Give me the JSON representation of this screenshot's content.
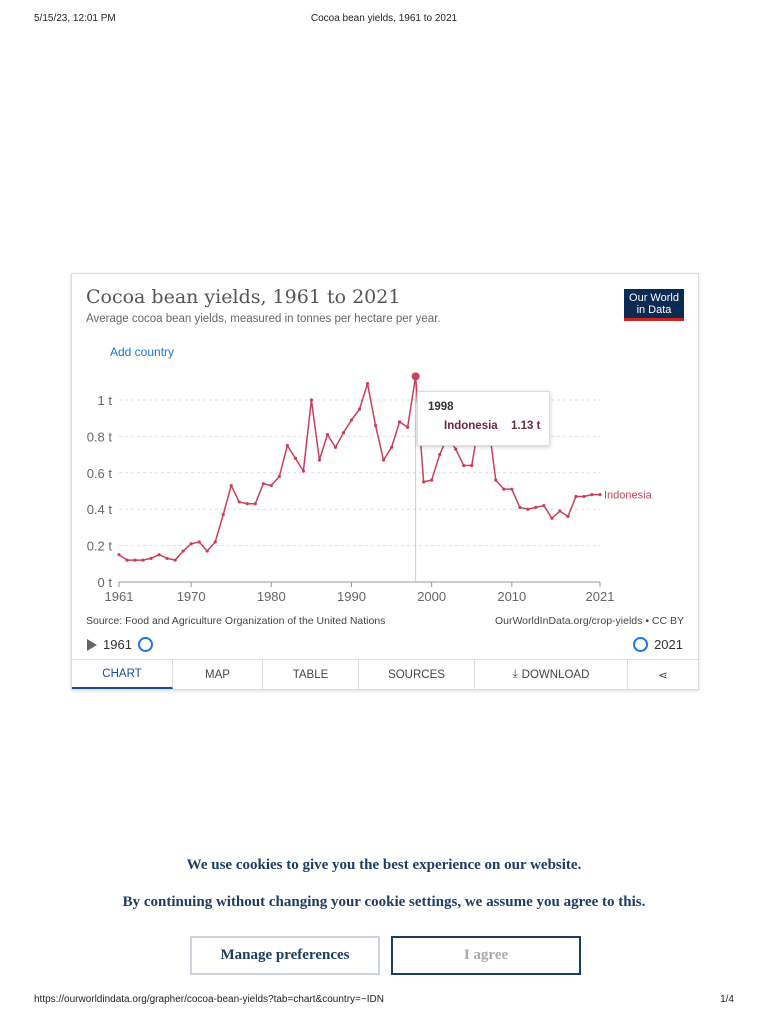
{
  "print_header": {
    "datetime": "5/15/23, 12:01 PM",
    "title": "Cocoa bean yields, 1961 to 2021"
  },
  "print_footer": {
    "url": "https://ourworldindata.org/grapher/cocoa-bean-yields?tab=chart&country=~IDN",
    "page": "1/4"
  },
  "chart": {
    "title": "Cocoa bean yields, 1961 to 2021",
    "subtitle": "Average cocoa bean yields, measured in tonnes per hectare per year.",
    "logo": "Our World in Data",
    "add_country": "Add country",
    "source": "Source: Food and Agriculture Organization of the United Nations",
    "credit": "OurWorldInData.org/crop-yields • CC BY",
    "timeline_start": "1961",
    "timeline_end": "2021"
  },
  "tooltip": {
    "year": "1998",
    "country": "Indonesia",
    "value": "1.13 t"
  },
  "tabs": [
    "CHART",
    "MAP",
    "TABLE",
    "SOURCES",
    "DOWNLOAD"
  ],
  "cookie": {
    "line1": "We use cookies to give you the best experience on our website.",
    "line2": "By continuing without changing your cookie settings, we assume you agree to this.",
    "manage": "Manage preferences",
    "agree": "I agree"
  },
  "colors": {
    "series": "#c9405a",
    "brand": "#0b2a54"
  },
  "chart_data": {
    "type": "line",
    "title": "Cocoa bean yields, 1961 to 2021",
    "ylabel": "tonnes per hectare",
    "ylim": [
      0,
      1.15
    ],
    "y_ticks": [
      {
        "v": 0,
        "label": "0 t"
      },
      {
        "v": 0.2,
        "label": "0.2 t"
      },
      {
        "v": 0.4,
        "label": "0.4 t"
      },
      {
        "v": 0.6,
        "label": "0.6 t"
      },
      {
        "v": 0.8,
        "label": "0.8 t"
      },
      {
        "v": 1,
        "label": "1 t"
      }
    ],
    "x_ticks": [
      1961,
      1970,
      1980,
      1990,
      2000,
      2010,
      2021
    ],
    "series": [
      {
        "name": "Indonesia",
        "x_start": 1961,
        "values": [
          0.15,
          0.12,
          0.12,
          0.12,
          0.13,
          0.15,
          0.13,
          0.12,
          0.17,
          0.21,
          0.22,
          0.17,
          0.22,
          0.37,
          0.53,
          0.44,
          0.43,
          0.43,
          0.54,
          0.53,
          0.58,
          0.75,
          0.68,
          0.61,
          1.0,
          0.67,
          0.81,
          0.74,
          0.82,
          0.89,
          0.95,
          1.09,
          0.86,
          0.67,
          0.74,
          0.88,
          0.85,
          1.13,
          0.55,
          0.56,
          0.7,
          0.8,
          0.73,
          0.64,
          0.64,
          0.9,
          0.9,
          0.56,
          0.51,
          0.51,
          0.41,
          0.4,
          0.41,
          0.42,
          0.35,
          0.39,
          0.36,
          0.47,
          0.47,
          0.48,
          0.48
        ]
      }
    ],
    "highlight_year": 1998
  }
}
